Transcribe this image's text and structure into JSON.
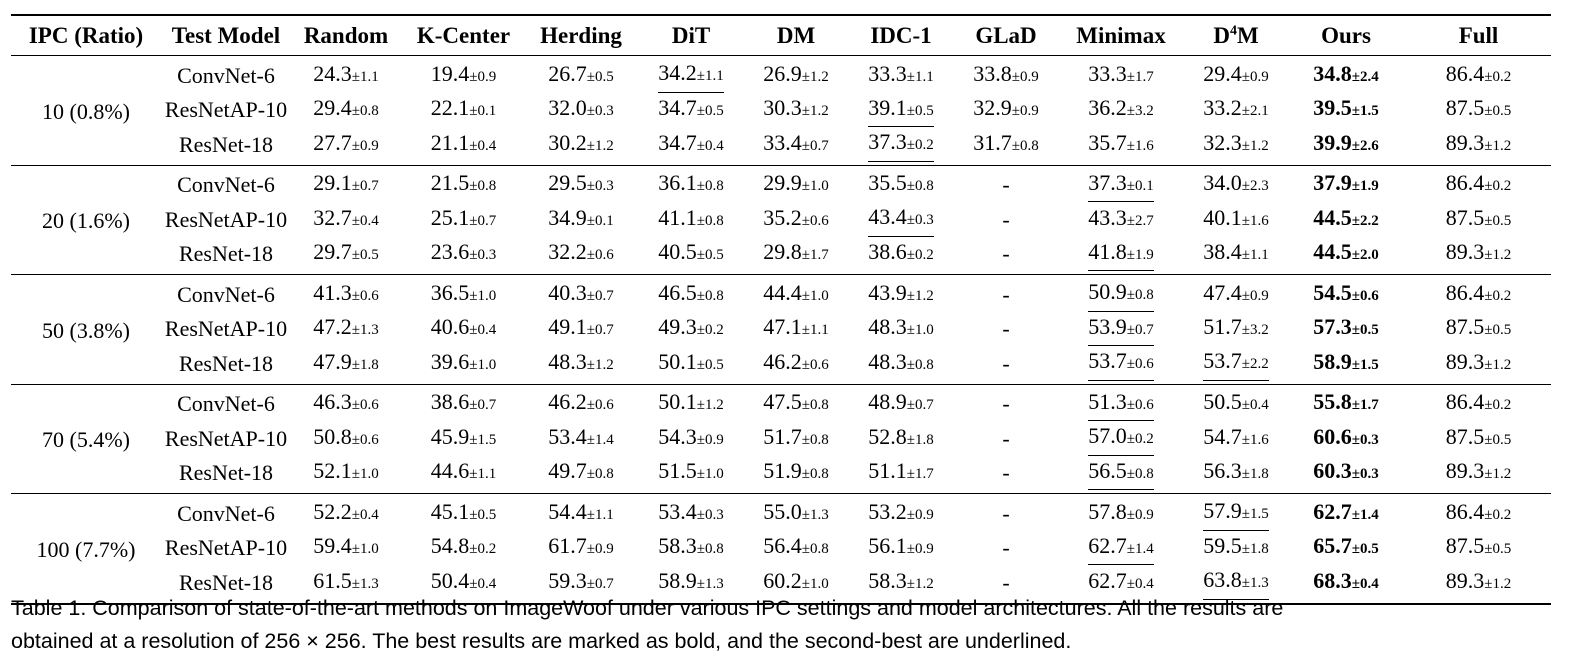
{
  "table": {
    "headers": [
      "IPC (Ratio)",
      "Test Model",
      "Random",
      "K-Center",
      "Herding",
      "DiT",
      "DM",
      "IDC-1",
      "GLaD",
      "Minimax",
      "D",
      "Ours",
      "Full"
    ],
    "d4m_sup": "4",
    "d4m_suffix": "M",
    "groups": [
      {
        "ipc": "10 (0.8%)",
        "rows": [
          {
            "model": "ConvNet-6",
            "cells": [
              [
                "24.3",
                "±1.1",
                ""
              ],
              [
                "19.4",
                "±0.9",
                ""
              ],
              [
                "26.7",
                "±0.5",
                ""
              ],
              [
                "34.2",
                "±1.1",
                "second"
              ],
              [
                "26.9",
                "±1.2",
                ""
              ],
              [
                "33.3",
                "±1.1",
                ""
              ],
              [
                "33.8",
                "±0.9",
                ""
              ],
              [
                "33.3",
                "±1.7",
                ""
              ],
              [
                "29.4",
                "±0.9",
                ""
              ],
              [
                "34.8",
                "±2.4",
                "best"
              ],
              [
                "86.4",
                "±0.2",
                ""
              ]
            ]
          },
          {
            "model": "ResNetAP-10",
            "cells": [
              [
                "29.4",
                "±0.8",
                ""
              ],
              [
                "22.1",
                "±0.1",
                ""
              ],
              [
                "32.0",
                "±0.3",
                ""
              ],
              [
                "34.7",
                "±0.5",
                ""
              ],
              [
                "30.3",
                "±1.2",
                ""
              ],
              [
                "39.1",
                "±0.5",
                "second"
              ],
              [
                "32.9",
                "±0.9",
                ""
              ],
              [
                "36.2",
                "±3.2",
                ""
              ],
              [
                "33.2",
                "±2.1",
                ""
              ],
              [
                "39.5",
                "±1.5",
                "best"
              ],
              [
                "87.5",
                "±0.5",
                ""
              ]
            ]
          },
          {
            "model": "ResNet-18",
            "cells": [
              [
                "27.7",
                "±0.9",
                ""
              ],
              [
                "21.1",
                "±0.4",
                ""
              ],
              [
                "30.2",
                "±1.2",
                ""
              ],
              [
                "34.7",
                "±0.4",
                ""
              ],
              [
                "33.4",
                "±0.7",
                ""
              ],
              [
                "37.3",
                "±0.2",
                "second"
              ],
              [
                "31.7",
                "±0.8",
                ""
              ],
              [
                "35.7",
                "±1.6",
                ""
              ],
              [
                "32.3",
                "±1.2",
                ""
              ],
              [
                "39.9",
                "±2.6",
                "best"
              ],
              [
                "89.3",
                "±1.2",
                ""
              ]
            ]
          }
        ]
      },
      {
        "ipc": "20 (1.6%)",
        "rows": [
          {
            "model": "ConvNet-6",
            "cells": [
              [
                "29.1",
                "±0.7",
                ""
              ],
              [
                "21.5",
                "±0.8",
                ""
              ],
              [
                "29.5",
                "±0.3",
                ""
              ],
              [
                "36.1",
                "±0.8",
                ""
              ],
              [
                "29.9",
                "±1.0",
                ""
              ],
              [
                "35.5",
                "±0.8",
                ""
              ],
              [
                "-",
                "",
                ""
              ],
              [
                "37.3",
                "±0.1",
                "second"
              ],
              [
                "34.0",
                "±2.3",
                ""
              ],
              [
                "37.9",
                "±1.9",
                "best"
              ],
              [
                "86.4",
                "±0.2",
                ""
              ]
            ]
          },
          {
            "model": "ResNetAP-10",
            "cells": [
              [
                "32.7",
                "±0.4",
                ""
              ],
              [
                "25.1",
                "±0.7",
                ""
              ],
              [
                "34.9",
                "±0.1",
                ""
              ],
              [
                "41.1",
                "±0.8",
                ""
              ],
              [
                "35.2",
                "±0.6",
                ""
              ],
              [
                "43.4",
                "±0.3",
                "second"
              ],
              [
                "-",
                "",
                ""
              ],
              [
                "43.3",
                "±2.7",
                ""
              ],
              [
                "40.1",
                "±1.6",
                ""
              ],
              [
                "44.5",
                "±2.2",
                "best"
              ],
              [
                "87.5",
                "±0.5",
                ""
              ]
            ]
          },
          {
            "model": "ResNet-18",
            "cells": [
              [
                "29.7",
                "±0.5",
                ""
              ],
              [
                "23.6",
                "±0.3",
                ""
              ],
              [
                "32.2",
                "±0.6",
                ""
              ],
              [
                "40.5",
                "±0.5",
                ""
              ],
              [
                "29.8",
                "±1.7",
                ""
              ],
              [
                "38.6",
                "±0.2",
                ""
              ],
              [
                "-",
                "",
                ""
              ],
              [
                "41.8",
                "±1.9",
                "second"
              ],
              [
                "38.4",
                "±1.1",
                ""
              ],
              [
                "44.5",
                "±2.0",
                "best"
              ],
              [
                "89.3",
                "±1.2",
                ""
              ]
            ]
          }
        ]
      },
      {
        "ipc": "50 (3.8%)",
        "rows": [
          {
            "model": "ConvNet-6",
            "cells": [
              [
                "41.3",
                "±0.6",
                ""
              ],
              [
                "36.5",
                "±1.0",
                ""
              ],
              [
                "40.3",
                "±0.7",
                ""
              ],
              [
                "46.5",
                "±0.8",
                ""
              ],
              [
                "44.4",
                "±1.0",
                ""
              ],
              [
                "43.9",
                "±1.2",
                ""
              ],
              [
                "-",
                "",
                ""
              ],
              [
                "50.9",
                "±0.8",
                "second"
              ],
              [
                "47.4",
                "±0.9",
                ""
              ],
              [
                "54.5",
                "±0.6",
                "best"
              ],
              [
                "86.4",
                "±0.2",
                ""
              ]
            ]
          },
          {
            "model": "ResNetAP-10",
            "cells": [
              [
                "47.2",
                "±1.3",
                ""
              ],
              [
                "40.6",
                "±0.4",
                ""
              ],
              [
                "49.1",
                "±0.7",
                ""
              ],
              [
                "49.3",
                "±0.2",
                ""
              ],
              [
                "47.1",
                "±1.1",
                ""
              ],
              [
                "48.3",
                "±1.0",
                ""
              ],
              [
                "-",
                "",
                ""
              ],
              [
                "53.9",
                "±0.7",
                "second"
              ],
              [
                "51.7",
                "±3.2",
                ""
              ],
              [
                "57.3",
                "±0.5",
                "best"
              ],
              [
                "87.5",
                "±0.5",
                ""
              ]
            ]
          },
          {
            "model": "ResNet-18",
            "cells": [
              [
                "47.9",
                "±1.8",
                ""
              ],
              [
                "39.6",
                "±1.0",
                ""
              ],
              [
                "48.3",
                "±1.2",
                ""
              ],
              [
                "50.1",
                "±0.5",
                ""
              ],
              [
                "46.2",
                "±0.6",
                ""
              ],
              [
                "48.3",
                "±0.8",
                ""
              ],
              [
                "-",
                "",
                ""
              ],
              [
                "53.7",
                "±0.6",
                "second"
              ],
              [
                "53.7",
                "±2.2",
                "second"
              ],
              [
                "58.9",
                "±1.5",
                "best"
              ],
              [
                "89.3",
                "±1.2",
                ""
              ]
            ]
          }
        ]
      },
      {
        "ipc": "70 (5.4%)",
        "rows": [
          {
            "model": "ConvNet-6",
            "cells": [
              [
                "46.3",
                "±0.6",
                ""
              ],
              [
                "38.6",
                "±0.7",
                ""
              ],
              [
                "46.2",
                "±0.6",
                ""
              ],
              [
                "50.1",
                "±1.2",
                ""
              ],
              [
                "47.5",
                "±0.8",
                ""
              ],
              [
                "48.9",
                "±0.7",
                ""
              ],
              [
                "-",
                "",
                ""
              ],
              [
                "51.3",
                "±0.6",
                "second"
              ],
              [
                "50.5",
                "±0.4",
                ""
              ],
              [
                "55.8",
                "±1.7",
                "best"
              ],
              [
                "86.4",
                "±0.2",
                ""
              ]
            ]
          },
          {
            "model": "ResNetAP-10",
            "cells": [
              [
                "50.8",
                "±0.6",
                ""
              ],
              [
                "45.9",
                "±1.5",
                ""
              ],
              [
                "53.4",
                "±1.4",
                ""
              ],
              [
                "54.3",
                "±0.9",
                ""
              ],
              [
                "51.7",
                "±0.8",
                ""
              ],
              [
                "52.8",
                "±1.8",
                ""
              ],
              [
                "-",
                "",
                ""
              ],
              [
                "57.0",
                "±0.2",
                "second"
              ],
              [
                "54.7",
                "±1.6",
                ""
              ],
              [
                "60.6",
                "±0.3",
                "best"
              ],
              [
                "87.5",
                "±0.5",
                ""
              ]
            ]
          },
          {
            "model": "ResNet-18",
            "cells": [
              [
                "52.1",
                "±1.0",
                ""
              ],
              [
                "44.6",
                "±1.1",
                ""
              ],
              [
                "49.7",
                "±0.8",
                ""
              ],
              [
                "51.5",
                "±1.0",
                ""
              ],
              [
                "51.9",
                "±0.8",
                ""
              ],
              [
                "51.1",
                "±1.7",
                ""
              ],
              [
                "-",
                "",
                ""
              ],
              [
                "56.5",
                "±0.8",
                "second"
              ],
              [
                "56.3",
                "±1.8",
                ""
              ],
              [
                "60.3",
                "±0.3",
                "best"
              ],
              [
                "89.3",
                "±1.2",
                ""
              ]
            ]
          }
        ]
      },
      {
        "ipc": "100 (7.7%)",
        "rows": [
          {
            "model": "ConvNet-6",
            "cells": [
              [
                "52.2",
                "±0.4",
                ""
              ],
              [
                "45.1",
                "±0.5",
                ""
              ],
              [
                "54.4",
                "±1.1",
                ""
              ],
              [
                "53.4",
                "±0.3",
                ""
              ],
              [
                "55.0",
                "±1.3",
                ""
              ],
              [
                "53.2",
                "±0.9",
                ""
              ],
              [
                "-",
                "",
                ""
              ],
              [
                "57.8",
                "±0.9",
                ""
              ],
              [
                "57.9",
                "±1.5",
                "second"
              ],
              [
                "62.7",
                "±1.4",
                "best"
              ],
              [
                "86.4",
                "±0.2",
                ""
              ]
            ]
          },
          {
            "model": "ResNetAP-10",
            "cells": [
              [
                "59.4",
                "±1.0",
                ""
              ],
              [
                "54.8",
                "±0.2",
                ""
              ],
              [
                "61.7",
                "±0.9",
                ""
              ],
              [
                "58.3",
                "±0.8",
                ""
              ],
              [
                "56.4",
                "±0.8",
                ""
              ],
              [
                "56.1",
                "±0.9",
                ""
              ],
              [
                "-",
                "",
                ""
              ],
              [
                "62.7",
                "±1.4",
                "second"
              ],
              [
                "59.5",
                "±1.8",
                ""
              ],
              [
                "65.7",
                "±0.5",
                "best"
              ],
              [
                "87.5",
                "±0.5",
                ""
              ]
            ]
          },
          {
            "model": "ResNet-18",
            "cells": [
              [
                "61.5",
                "±1.3",
                ""
              ],
              [
                "50.4",
                "±0.4",
                ""
              ],
              [
                "59.3",
                "±0.7",
                ""
              ],
              [
                "58.9",
                "±1.3",
                ""
              ],
              [
                "60.2",
                "±1.0",
                ""
              ],
              [
                "58.3",
                "±1.2",
                ""
              ],
              [
                "-",
                "",
                ""
              ],
              [
                "62.7",
                "±0.4",
                ""
              ],
              [
                "63.8",
                "±1.3",
                "second"
              ],
              [
                "68.3",
                "±0.4",
                "best"
              ],
              [
                "89.3",
                "±1.2",
                ""
              ]
            ]
          }
        ]
      }
    ]
  },
  "caption": {
    "line1": "Table 1.  Comparison of state-of-the-art methods on ImageWoof under various IPC settings and model architectures.  All the results are",
    "line2": "obtained at a resolution of 256 × 256. The best results are marked as bold, and the second-best are underlined."
  }
}
